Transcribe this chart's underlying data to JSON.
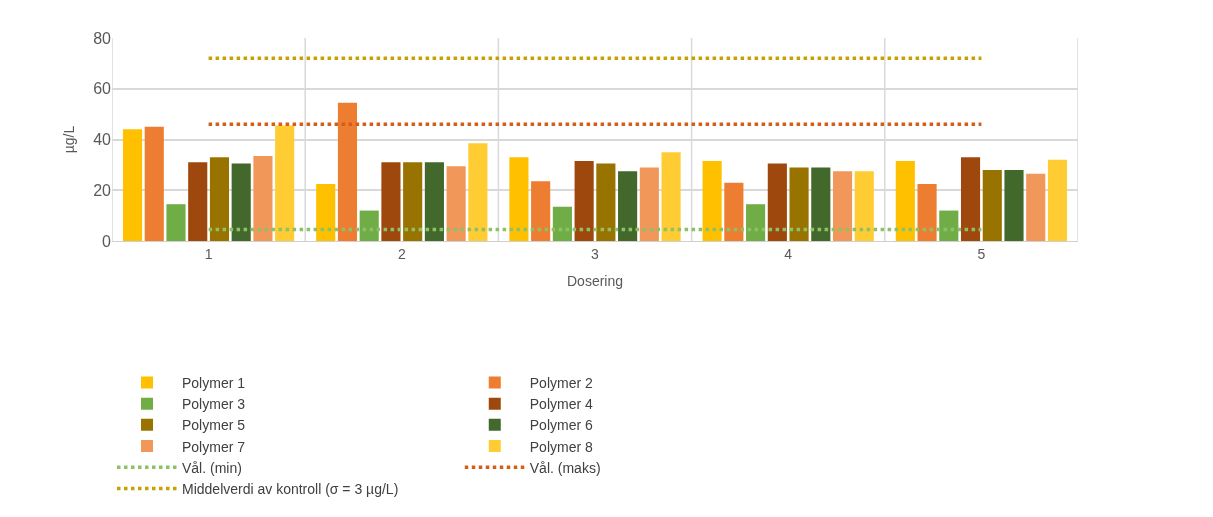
{
  "chart_data": {
    "type": "bar",
    "xlabel": "Dosering",
    "ylabel": "µg/L",
    "categories": [
      "1",
      "2",
      "3",
      "4",
      "5"
    ],
    "ylim": [
      0,
      80
    ],
    "yticks": [
      0,
      20,
      40,
      60,
      80
    ],
    "grid": true,
    "legend": "bottom",
    "series": [
      {
        "name": "Polymer 1",
        "color": "#ffc000",
        "values": [
          44,
          22.5,
          33,
          31.5,
          31.5
        ]
      },
      {
        "name": "Polymer 2",
        "color": "#ed7d31",
        "values": [
          45,
          54.5,
          23.5,
          23,
          22.5
        ]
      },
      {
        "name": "Polymer 3",
        "color": "#70ad47",
        "values": [
          14.5,
          12,
          13.5,
          14.5,
          12
        ]
      },
      {
        "name": "Polymer 4",
        "color": "#9e480e",
        "values": [
          31,
          31,
          31.5,
          30.5,
          33
        ]
      },
      {
        "name": "Polymer 5",
        "color": "#997300",
        "values": [
          33,
          31,
          30.5,
          29,
          28
        ]
      },
      {
        "name": "Polymer 6",
        "color": "#43682b",
        "values": [
          30.5,
          31,
          27.5,
          29,
          28
        ]
      },
      {
        "name": "Polymer 7",
        "color": "#f1975a",
        "values": [
          33.5,
          29.5,
          29,
          27.5,
          26.5
        ]
      },
      {
        "name": "Polymer 8",
        "color": "#ffcd33",
        "values": [
          45.5,
          38.5,
          35,
          27.5,
          32
        ]
      },
      {
        "name": "Vål. (min)",
        "type": "line",
        "marker": "none",
        "line_style": "dotted",
        "color": "#8cc168",
        "values": [
          4.5,
          4.5,
          4.5,
          4.5,
          4.5
        ]
      },
      {
        "name": "Vål. (maks)",
        "type": "line",
        "marker": "none",
        "line_style": "dotted",
        "color": "#d35d1a",
        "values": [
          46,
          46,
          46,
          46,
          46
        ]
      },
      {
        "name": "Middelverdi av kontroll (σ = 3 µg/L)",
        "type": "line",
        "marker": "none",
        "line_style": "dotted",
        "color": "#c9a000",
        "values": [
          72,
          72,
          72,
          72,
          72
        ]
      }
    ]
  }
}
